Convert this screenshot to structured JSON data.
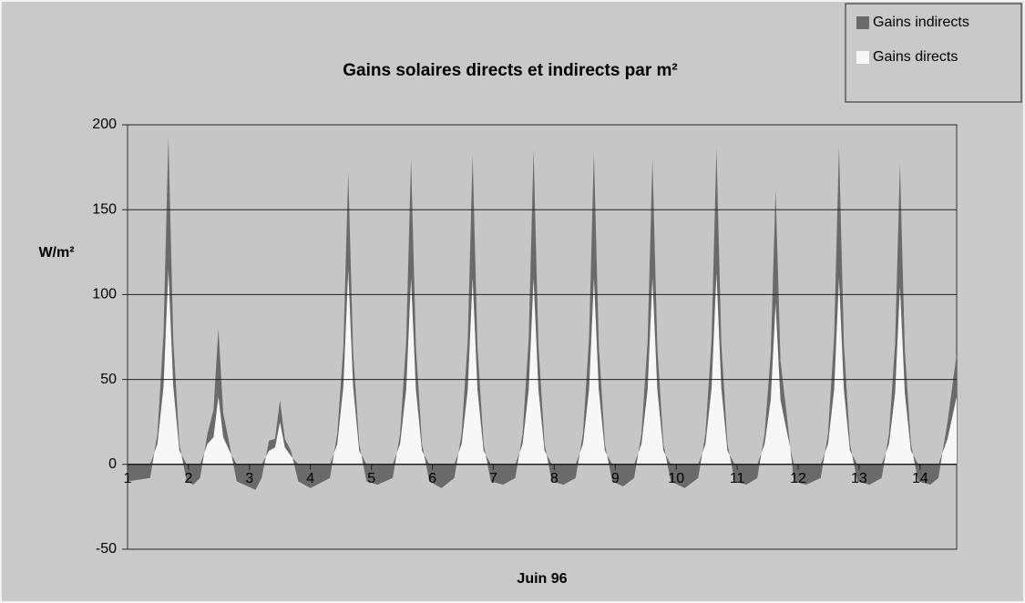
{
  "chart_data": {
    "type": "stacked_area",
    "title": "Gains solaires directs et indirects par m²",
    "y_label": "W/m²",
    "x_label": "Juin 96",
    "xlim": [
      1,
      14.6
    ],
    "xticks": [
      1,
      2,
      3,
      4,
      5,
      6,
      7,
      8,
      9,
      10,
      11,
      12,
      13,
      14
    ],
    "ylim": [
      -50,
      200
    ],
    "yticks": [
      -50,
      0,
      50,
      100,
      150,
      200
    ],
    "grid": true,
    "legend": "top-right",
    "x": [
      1,
      1.37,
      1.49,
      1.59,
      1.67,
      1.75,
      1.85,
      1.97,
      2.08,
      2.19,
      2.31,
      2.41,
      2.49,
      2.57,
      2.67,
      2.79,
      3.1,
      3.2,
      3.32,
      3.42,
      3.5,
      3.58,
      3.68,
      3.8,
      4.0,
      4.32,
      4.44,
      4.54,
      4.62,
      4.7,
      4.8,
      4.92,
      5.1,
      5.35,
      5.47,
      5.57,
      5.65,
      5.73,
      5.83,
      5.95,
      6.15,
      6.36,
      6.48,
      6.58,
      6.66,
      6.74,
      6.84,
      6.96,
      7.16,
      7.36,
      7.48,
      7.58,
      7.66,
      7.74,
      7.84,
      7.96,
      8.15,
      8.35,
      8.47,
      8.57,
      8.65,
      8.73,
      8.83,
      8.95,
      9.13,
      9.31,
      9.43,
      9.53,
      9.61,
      9.69,
      9.79,
      9.91,
      10.14,
      10.36,
      10.48,
      10.58,
      10.66,
      10.74,
      10.84,
      10.96,
      11.15,
      11.33,
      11.45,
      11.55,
      11.63,
      11.71,
      11.81,
      11.93,
      12.13,
      12.37,
      12.49,
      12.59,
      12.67,
      12.75,
      12.85,
      12.97,
      13.17,
      13.37,
      13.49,
      13.59,
      13.67,
      13.75,
      13.85,
      13.97,
      14.17,
      14.3,
      14.45,
      14.6
    ],
    "series": [
      {
        "name": "Gains indirects",
        "color": "#6a6a6a",
        "values": [
          -10,
          -8,
          6,
          31,
          78,
          27,
          4,
          -10,
          -12,
          -8,
          6,
          16,
          40,
          14,
          4,
          -10,
          -15,
          -8,
          6,
          5,
          13,
          5,
          3,
          -10,
          -14,
          -8,
          6,
          23,
          57,
          20,
          4,
          -10,
          -12,
          -8,
          6,
          28,
          70,
          25,
          4,
          -10,
          -14,
          -8,
          6,
          29,
          72,
          25,
          4,
          -10,
          -12,
          -8,
          6,
          30,
          75,
          26,
          4,
          -10,
          -12,
          -8,
          6,
          30,
          74,
          26,
          4,
          -10,
          -13,
          -8,
          6,
          28,
          70,
          25,
          4,
          -10,
          -14,
          -8,
          6,
          29,
          73,
          26,
          4,
          -10,
          -12,
          -8,
          6,
          27,
          67,
          23,
          10,
          -10,
          -12,
          -8,
          6,
          31,
          77,
          27,
          4,
          -10,
          -12,
          -8,
          6,
          29,
          72,
          25,
          4,
          -10,
          -12,
          -8,
          10,
          25
        ]
      },
      {
        "name": "Gains directs",
        "color": "#f7f7f7",
        "values": [
          0,
          0,
          12,
          46,
          115,
          46,
          8,
          0,
          0,
          0,
          12,
          16,
          40,
          16,
          8,
          0,
          0,
          0,
          8,
          10,
          25,
          10,
          5,
          0,
          0,
          0,
          12,
          46,
          115,
          46,
          8,
          0,
          0,
          0,
          12,
          44,
          110,
          44,
          8,
          0,
          0,
          0,
          12,
          44,
          110,
          44,
          8,
          0,
          0,
          0,
          12,
          44,
          110,
          44,
          8,
          0,
          0,
          0,
          12,
          44,
          110,
          44,
          8,
          0,
          0,
          0,
          12,
          44,
          110,
          44,
          8,
          0,
          0,
          0,
          12,
          45,
          113,
          45,
          8,
          0,
          0,
          0,
          12,
          38,
          95,
          38,
          20,
          0,
          0,
          0,
          12,
          44,
          110,
          44,
          8,
          0,
          0,
          0,
          12,
          42,
          105,
          42,
          8,
          0,
          0,
          0,
          15,
          40
        ]
      }
    ]
  }
}
